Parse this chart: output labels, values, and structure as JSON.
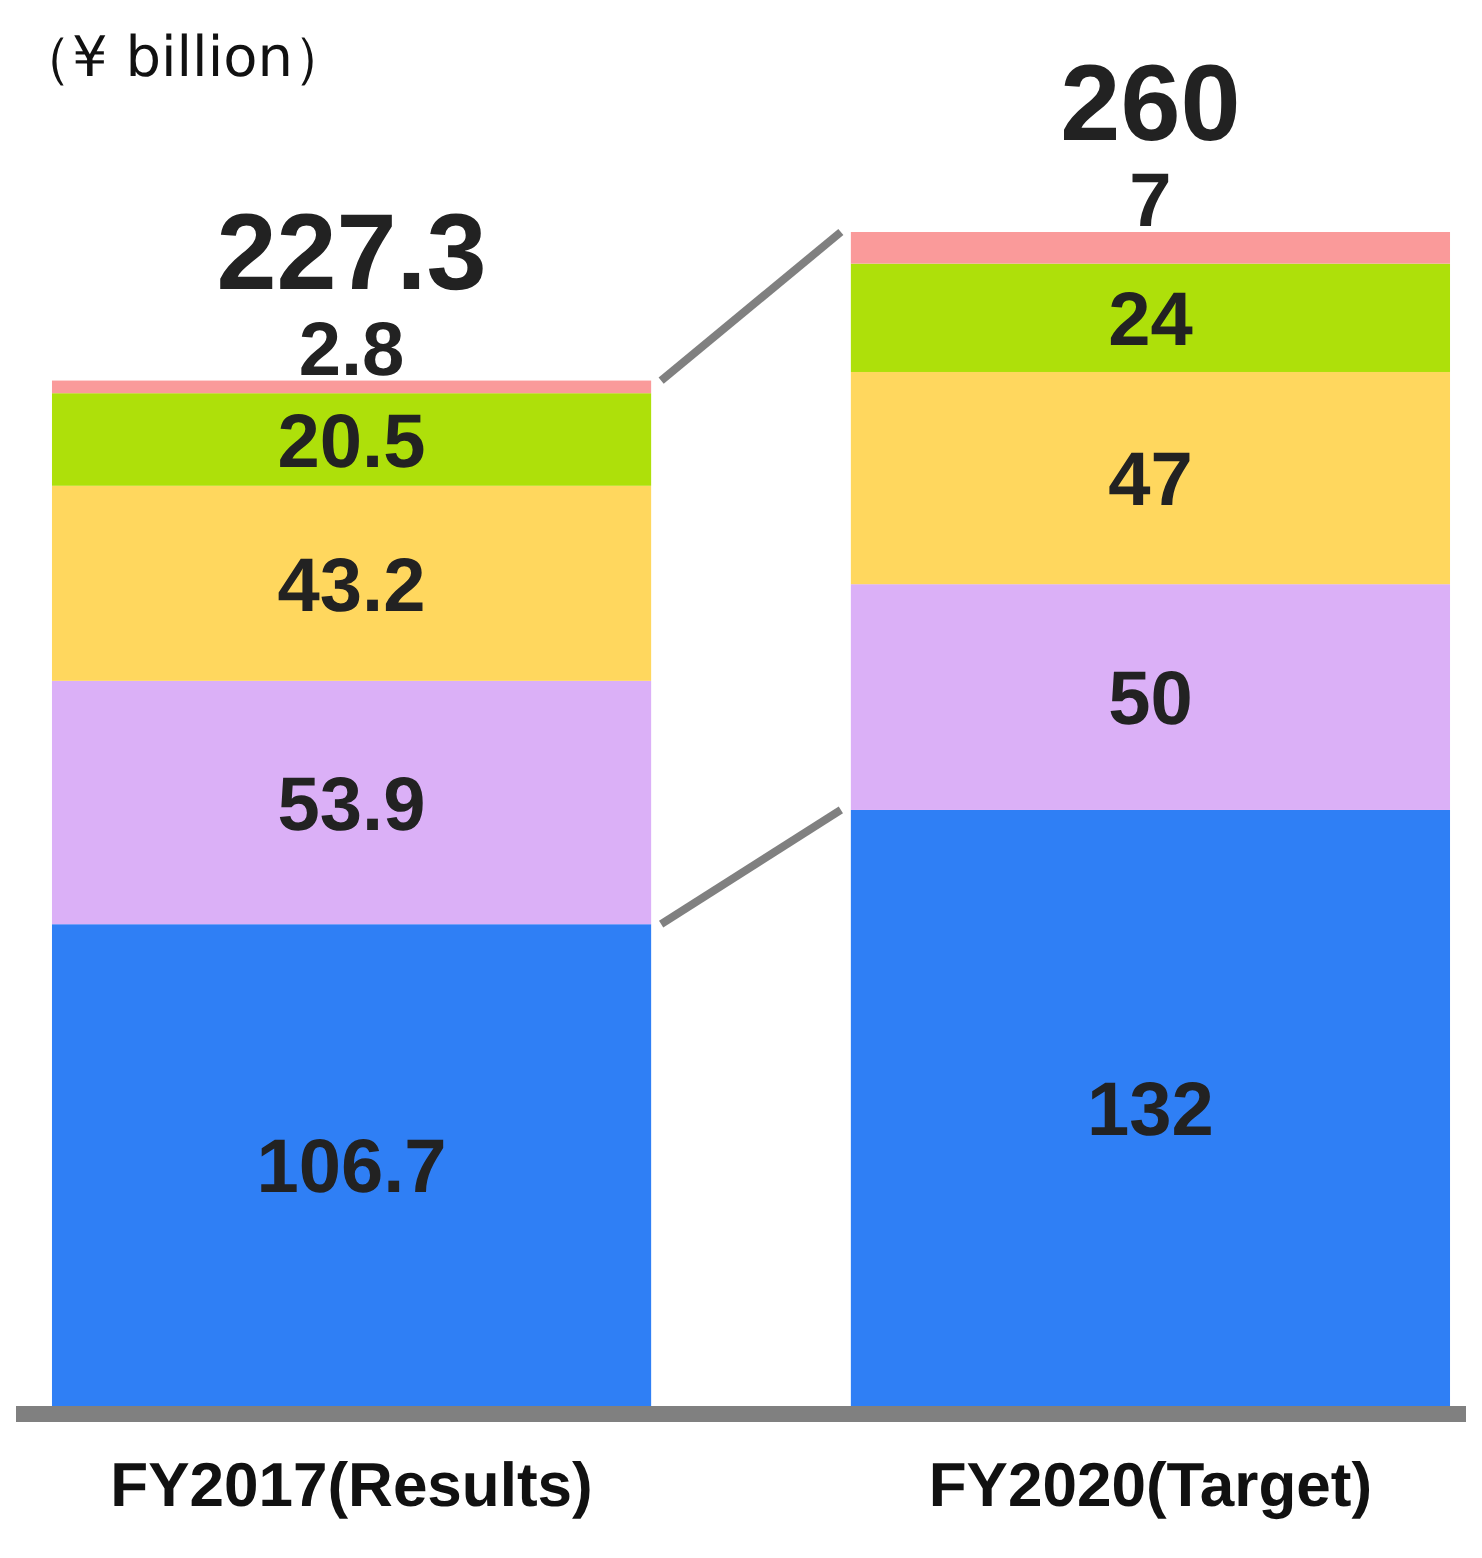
{
  "chart_data": {
    "type": "bar",
    "stacked": true,
    "data_labels": true,
    "annotations": [
      "（¥ billion）"
    ],
    "categories": [
      "FY2017(Results)",
      "FY2020(Target)"
    ],
    "series": [
      {
        "color": "#2f7ff5",
        "values": [
          106.7,
          132
        ]
      },
      {
        "color": "#dbb0f7",
        "values": [
          53.9,
          50
        ]
      },
      {
        "color": "#ffd75e",
        "values": [
          43.2,
          47
        ]
      },
      {
        "color": "#aee00a",
        "values": [
          20.5,
          24
        ]
      },
      {
        "color": "#fa9a9a",
        "values": [
          2.8,
          7
        ]
      }
    ],
    "totals": [
      "227.3",
      "260"
    ],
    "ylim": [
      0,
      260
    ]
  }
}
